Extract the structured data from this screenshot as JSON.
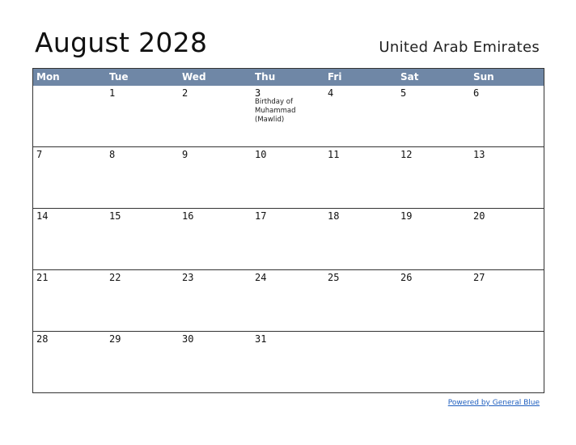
{
  "header": {
    "title": "August 2028",
    "country": "United Arab Emirates"
  },
  "weekdays": [
    "Mon",
    "Tue",
    "Wed",
    "Thu",
    "Fri",
    "Sat",
    "Sun"
  ],
  "weeks": [
    [
      "",
      "1",
      "2",
      "3",
      "4",
      "5",
      "6"
    ],
    [
      "7",
      "8",
      "9",
      "10",
      "11",
      "12",
      "13"
    ],
    [
      "14",
      "15",
      "16",
      "17",
      "18",
      "19",
      "20"
    ],
    [
      "21",
      "22",
      "23",
      "24",
      "25",
      "26",
      "27"
    ],
    [
      "28",
      "29",
      "30",
      "31",
      "",
      "",
      ""
    ]
  ],
  "holidays": {
    "thu_3": "Birthday of Muhammad (Mawlid)"
  },
  "footer": {
    "link": "Powered by General Blue"
  }
}
